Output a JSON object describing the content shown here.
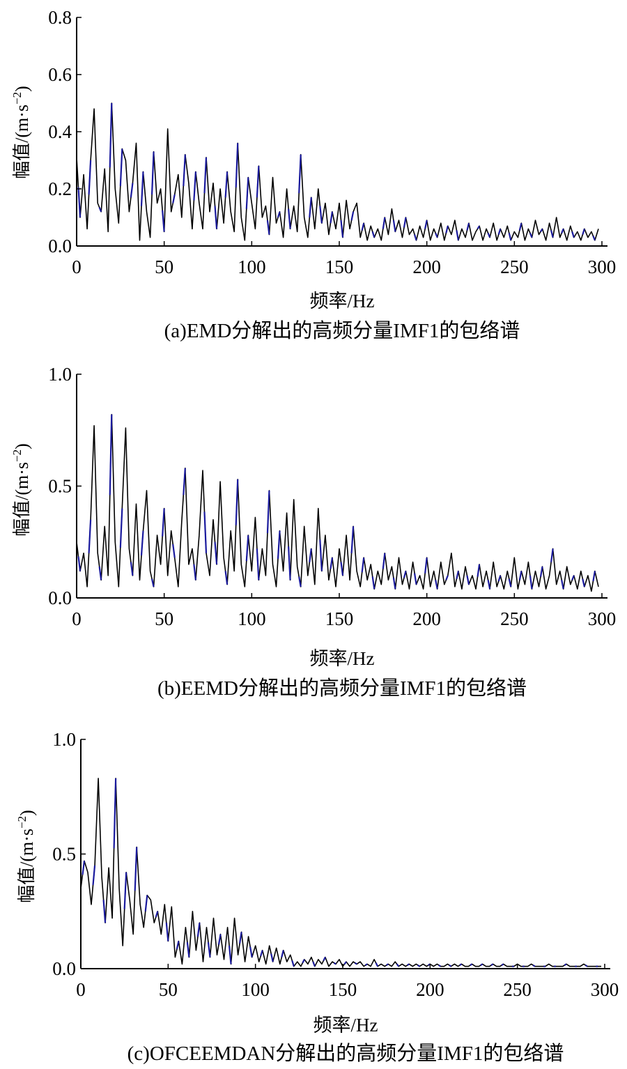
{
  "chart_data": [
    {
      "type": "line",
      "caption": "(a)EMD分解出的高频分量IMF1的包络谱",
      "xlabel": "频率/Hz",
      "ylabel_main": "幅值/(m·s",
      "ylabel_sup": "−2",
      "ylabel_close": ")",
      "xlim": [
        0,
        300
      ],
      "ylim": [
        0,
        0.8
      ],
      "xticks": [
        0,
        50,
        100,
        150,
        200,
        250,
        300
      ],
      "xtick_labels": [
        "0",
        "50",
        "100",
        "150",
        "200",
        "250",
        "300"
      ],
      "yticks": [
        0,
        0.2,
        0.4,
        0.6,
        0.8
      ],
      "ytick_labels": [
        "0.0",
        "0.2",
        "0.4",
        "0.6",
        "0.8"
      ],
      "grid": false,
      "line_color": "#000000",
      "highlight_color": "#1a1a9e",
      "series": [
        {
          "x": [
            0,
            2,
            4,
            6,
            8,
            10,
            12,
            14,
            16,
            18,
            20,
            22,
            24,
            26,
            28,
            30,
            32,
            34,
            36,
            38,
            40,
            42,
            44,
            46,
            48,
            50,
            52,
            54,
            56,
            58,
            60,
            62,
            64,
            66,
            68,
            70,
            72,
            74,
            76,
            78,
            80,
            82,
            84,
            86,
            88,
            90,
            92,
            94,
            96,
            98,
            100,
            102,
            104,
            106,
            108,
            110,
            112,
            114,
            116,
            118,
            120,
            122,
            124,
            126,
            128,
            130,
            132,
            134,
            136,
            138,
            140,
            142,
            144,
            146,
            148,
            150,
            152,
            154,
            156,
            158,
            160,
            162,
            164,
            166,
            168,
            170,
            172,
            174,
            176,
            178,
            180,
            182,
            184,
            186,
            188,
            190,
            192,
            194,
            196,
            198,
            200,
            202,
            204,
            206,
            208,
            210,
            212,
            214,
            216,
            218,
            220,
            222,
            224,
            226,
            228,
            230,
            232,
            234,
            236,
            238,
            240,
            242,
            244,
            246,
            248,
            250,
            252,
            254,
            256,
            258,
            260,
            262,
            264,
            266,
            268,
            270,
            272,
            274,
            276,
            278,
            280,
            282,
            284,
            286,
            288,
            290,
            292,
            294,
            296,
            298
          ],
          "y": [
            0.31,
            0.1,
            0.25,
            0.06,
            0.3,
            0.48,
            0.15,
            0.12,
            0.27,
            0.05,
            0.5,
            0.2,
            0.08,
            0.34,
            0.3,
            0.12,
            0.22,
            0.36,
            0.02,
            0.26,
            0.12,
            0.03,
            0.33,
            0.15,
            0.2,
            0.05,
            0.41,
            0.12,
            0.18,
            0.25,
            0.1,
            0.32,
            0.22,
            0.06,
            0.26,
            0.15,
            0.06,
            0.31,
            0.12,
            0.22,
            0.06,
            0.2,
            0.08,
            0.26,
            0.12,
            0.05,
            0.36,
            0.1,
            0.02,
            0.24,
            0.15,
            0.06,
            0.28,
            0.1,
            0.14,
            0.04,
            0.24,
            0.08,
            0.12,
            0.03,
            0.2,
            0.06,
            0.14,
            0.05,
            0.32,
            0.1,
            0.03,
            0.17,
            0.06,
            0.2,
            0.08,
            0.15,
            0.04,
            0.12,
            0.06,
            0.15,
            0.03,
            0.16,
            0.06,
            0.12,
            0.15,
            0.03,
            0.08,
            0.02,
            0.07,
            0.03,
            0.06,
            0.02,
            0.1,
            0.04,
            0.13,
            0.05,
            0.09,
            0.03,
            0.1,
            0.04,
            0.06,
            0.02,
            0.07,
            0.03,
            0.09,
            0.02,
            0.06,
            0.03,
            0.08,
            0.02,
            0.07,
            0.04,
            0.09,
            0.02,
            0.06,
            0.03,
            0.08,
            0.02,
            0.05,
            0.07,
            0.02,
            0.06,
            0.03,
            0.08,
            0.02,
            0.06,
            0.03,
            0.07,
            0.02,
            0.05,
            0.03,
            0.08,
            0.02,
            0.06,
            0.03,
            0.09,
            0.04,
            0.06,
            0.02,
            0.08,
            0.03,
            0.1,
            0.03,
            0.06,
            0.02,
            0.07,
            0.03,
            0.05,
            0.02,
            0.06,
            0.03,
            0.05,
            0.02,
            0.06
          ]
        }
      ]
    },
    {
      "type": "line",
      "caption": "(b)EEMD分解出的高频分量IMF1的包络谱",
      "xlabel": "频率/Hz",
      "ylabel_main": "幅值/(m·s",
      "ylabel_sup": "−2",
      "ylabel_close": ")",
      "xlim": [
        0,
        300
      ],
      "ylim": [
        0,
        1.0
      ],
      "xticks": [
        0,
        50,
        100,
        150,
        200,
        250,
        300
      ],
      "xtick_labels": [
        "0",
        "50",
        "100",
        "150",
        "200",
        "250",
        "300"
      ],
      "yticks": [
        0,
        0.5,
        1.0
      ],
      "ytick_labels": [
        "0.0",
        "0.5",
        "1.0"
      ],
      "grid": false,
      "line_color": "#000000",
      "highlight_color": "#1a1a9e",
      "series": [
        {
          "x": [
            0,
            2,
            4,
            6,
            8,
            10,
            12,
            14,
            16,
            18,
            20,
            22,
            24,
            26,
            28,
            30,
            32,
            34,
            36,
            38,
            40,
            42,
            44,
            46,
            48,
            50,
            52,
            54,
            56,
            58,
            60,
            62,
            64,
            66,
            68,
            70,
            72,
            74,
            76,
            78,
            80,
            82,
            84,
            86,
            88,
            90,
            92,
            94,
            96,
            98,
            100,
            102,
            104,
            106,
            108,
            110,
            112,
            114,
            116,
            118,
            120,
            122,
            124,
            126,
            128,
            130,
            132,
            134,
            136,
            138,
            140,
            142,
            144,
            146,
            148,
            150,
            152,
            154,
            156,
            158,
            160,
            162,
            164,
            166,
            168,
            170,
            172,
            174,
            176,
            178,
            180,
            182,
            184,
            186,
            188,
            190,
            192,
            194,
            196,
            198,
            200,
            202,
            204,
            206,
            208,
            210,
            212,
            214,
            216,
            218,
            220,
            222,
            224,
            226,
            228,
            230,
            232,
            234,
            236,
            238,
            240,
            242,
            244,
            246,
            248,
            250,
            252,
            254,
            256,
            258,
            260,
            262,
            264,
            266,
            268,
            270,
            272,
            274,
            276,
            278,
            280,
            282,
            284,
            286,
            288,
            290,
            292,
            294,
            296,
            298
          ],
          "y": [
            0.25,
            0.12,
            0.2,
            0.05,
            0.35,
            0.77,
            0.2,
            0.08,
            0.32,
            0.1,
            0.82,
            0.25,
            0.05,
            0.4,
            0.76,
            0.22,
            0.1,
            0.42,
            0.08,
            0.3,
            0.48,
            0.12,
            0.05,
            0.28,
            0.15,
            0.4,
            0.1,
            0.3,
            0.18,
            0.05,
            0.34,
            0.58,
            0.15,
            0.22,
            0.08,
            0.28,
            0.57,
            0.2,
            0.1,
            0.35,
            0.15,
            0.52,
            0.18,
            0.06,
            0.3,
            0.12,
            0.53,
            0.15,
            0.05,
            0.28,
            0.12,
            0.36,
            0.08,
            0.22,
            0.1,
            0.48,
            0.15,
            0.05,
            0.3,
            0.12,
            0.38,
            0.08,
            0.44,
            0.14,
            0.05,
            0.32,
            0.1,
            0.22,
            0.06,
            0.4,
            0.12,
            0.28,
            0.08,
            0.18,
            0.05,
            0.22,
            0.1,
            0.28,
            0.08,
            0.32,
            0.12,
            0.05,
            0.18,
            0.08,
            0.15,
            0.04,
            0.12,
            0.06,
            0.2,
            0.08,
            0.14,
            0.04,
            0.18,
            0.06,
            0.12,
            0.04,
            0.16,
            0.06,
            0.1,
            0.04,
            0.18,
            0.05,
            0.12,
            0.04,
            0.16,
            0.06,
            0.1,
            0.2,
            0.05,
            0.12,
            0.04,
            0.14,
            0.06,
            0.1,
            0.04,
            0.15,
            0.05,
            0.12,
            0.04,
            0.16,
            0.05,
            0.1,
            0.04,
            0.12,
            0.05,
            0.18,
            0.04,
            0.12,
            0.06,
            0.16,
            0.04,
            0.12,
            0.05,
            0.14,
            0.04,
            0.1,
            0.22,
            0.06,
            0.12,
            0.04,
            0.14,
            0.06,
            0.1,
            0.04,
            0.12,
            0.05,
            0.1,
            0.03,
            0.12,
            0.05
          ]
        }
      ]
    },
    {
      "type": "line",
      "caption": "(c)OFCEEMDAN分解出的高频分量IMF1的包络谱",
      "xlabel": "频率/Hz",
      "ylabel_main": "幅值/(m·s",
      "ylabel_sup": "−2",
      "ylabel_close": ")",
      "xlim": [
        0,
        300
      ],
      "ylim": [
        0,
        1.0
      ],
      "xticks": [
        0,
        50,
        100,
        150,
        200,
        250,
        300
      ],
      "xtick_labels": [
        "0",
        "50",
        "100",
        "150",
        "200",
        "250",
        "300"
      ],
      "yticks": [
        0,
        0.5,
        1.0
      ],
      "ytick_labels": [
        "0.0",
        "0.5",
        "1.0"
      ],
      "grid": false,
      "line_color": "#000000",
      "highlight_color": "#1a1a9e",
      "series": [
        {
          "x": [
            0,
            2,
            4,
            6,
            8,
            10,
            12,
            14,
            16,
            18,
            20,
            22,
            24,
            26,
            28,
            30,
            32,
            34,
            36,
            38,
            40,
            42,
            44,
            46,
            48,
            50,
            52,
            54,
            56,
            58,
            60,
            62,
            64,
            66,
            68,
            70,
            72,
            74,
            76,
            78,
            80,
            82,
            84,
            86,
            88,
            90,
            92,
            94,
            96,
            98,
            100,
            102,
            104,
            106,
            108,
            110,
            112,
            114,
            116,
            118,
            120,
            122,
            124,
            126,
            128,
            130,
            132,
            134,
            136,
            138,
            140,
            142,
            144,
            146,
            148,
            150,
            152,
            154,
            156,
            158,
            160,
            162,
            164,
            166,
            168,
            170,
            172,
            174,
            176,
            178,
            180,
            182,
            184,
            186,
            188,
            190,
            192,
            194,
            196,
            198,
            200,
            202,
            204,
            206,
            208,
            210,
            212,
            214,
            216,
            218,
            220,
            222,
            224,
            226,
            228,
            230,
            232,
            234,
            236,
            238,
            240,
            242,
            244,
            246,
            248,
            250,
            252,
            254,
            256,
            258,
            260,
            262,
            264,
            266,
            268,
            270,
            272,
            274,
            276,
            278,
            280,
            282,
            284,
            286,
            288,
            290,
            292,
            294,
            296,
            298
          ],
          "y": [
            0.35,
            0.47,
            0.42,
            0.28,
            0.45,
            0.83,
            0.4,
            0.2,
            0.44,
            0.22,
            0.83,
            0.35,
            0.1,
            0.42,
            0.3,
            0.15,
            0.53,
            0.28,
            0.18,
            0.32,
            0.3,
            0.2,
            0.25,
            0.15,
            0.28,
            0.12,
            0.27,
            0.05,
            0.12,
            0.02,
            0.18,
            0.05,
            0.25,
            0.08,
            0.2,
            0.03,
            0.18,
            0.05,
            0.22,
            0.06,
            0.15,
            0.04,
            0.18,
            0.02,
            0.22,
            0.06,
            0.16,
            0.03,
            0.14,
            0.05,
            0.1,
            0.03,
            0.08,
            0.02,
            0.1,
            0.03,
            0.09,
            0.02,
            0.08,
            0.03,
            0.06,
            0.01,
            0.03,
            0.01,
            0.04,
            0.02,
            0.05,
            0.01,
            0.04,
            0.02,
            0.05,
            0.01,
            0.03,
            0.02,
            0.04,
            0.01,
            0.03,
            0.01,
            0.03,
            0.02,
            0.03,
            0.01,
            0.02,
            0.01,
            0.04,
            0.01,
            0.02,
            0.01,
            0.02,
            0.01,
            0.03,
            0.01,
            0.02,
            0.01,
            0.02,
            0.01,
            0.02,
            0.01,
            0.02,
            0.01,
            0.02,
            0.01,
            0.02,
            0.01,
            0.01,
            0.02,
            0.01,
            0.02,
            0.01,
            0.02,
            0.01,
            0.01,
            0.02,
            0.01,
            0.01,
            0.02,
            0.01,
            0.01,
            0.02,
            0.01,
            0.01,
            0.02,
            0.01,
            0.01,
            0.01,
            0.02,
            0.01,
            0.01,
            0.01,
            0.02,
            0.01,
            0.01,
            0.01,
            0.01,
            0.02,
            0.01,
            0.01,
            0.01,
            0.01,
            0.02,
            0.01,
            0.01,
            0.01,
            0.01,
            0.02,
            0.01,
            0.01,
            0.01,
            0.01,
            0.01
          ]
        }
      ]
    }
  ]
}
